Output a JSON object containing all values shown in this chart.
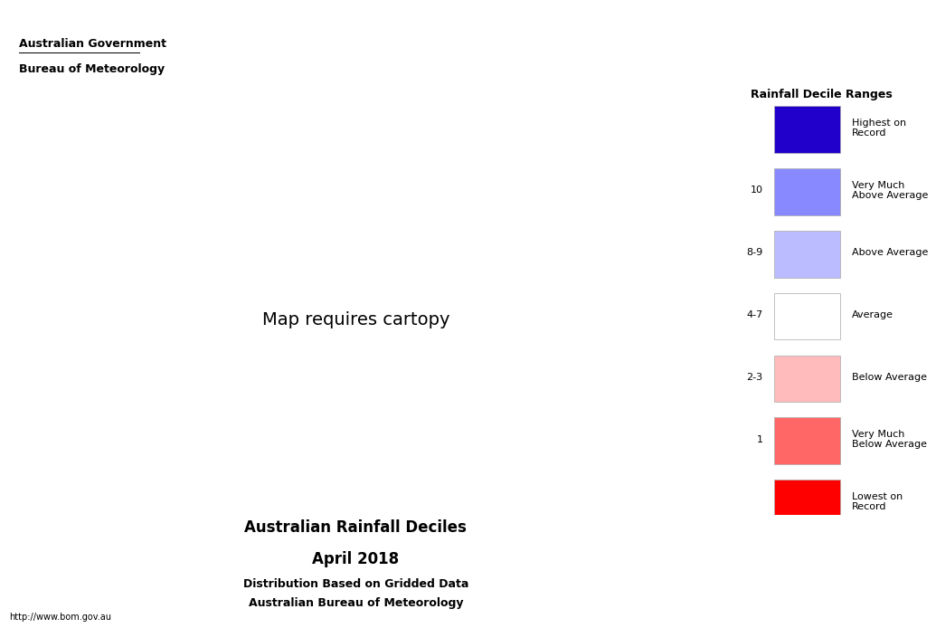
{
  "title_line1": "Australian Rainfall Deciles",
  "title_line2": "April 2018",
  "title_line3": "Distribution Based on Gridded Data",
  "title_line4": "Australian Bureau of Meteorology",
  "legend_title": "Rainfall Decile Ranges",
  "legend_entries": [
    {
      "label": "Highest on\nRecord",
      "color": "#2200CC",
      "decile": ""
    },
    {
      "label": "Very Much\nAbove Average",
      "color": "#8888FF",
      "decile": "10"
    },
    {
      "label": "Above Average",
      "color": "#BBBBFF",
      "decile": "8-9"
    },
    {
      "label": "Average",
      "color": "#FFFFFF",
      "decile": "4-7"
    },
    {
      "label": "Below Average",
      "color": "#FFBBBB",
      "decile": "2-3"
    },
    {
      "label": "Very Much\nBelow Average",
      "color": "#FF6666",
      "decile": "1"
    },
    {
      "label": "Lowest on\nRecord",
      "color": "#FF0000",
      "decile": ""
    }
  ],
  "header_line1": "Australian Government",
  "header_line2": "Bureau of Meteorology",
  "footer_url": "http://www.bom.gov.au",
  "background_color": "#FFFFFF",
  "figure_width": 10.35,
  "figure_height": 6.94
}
